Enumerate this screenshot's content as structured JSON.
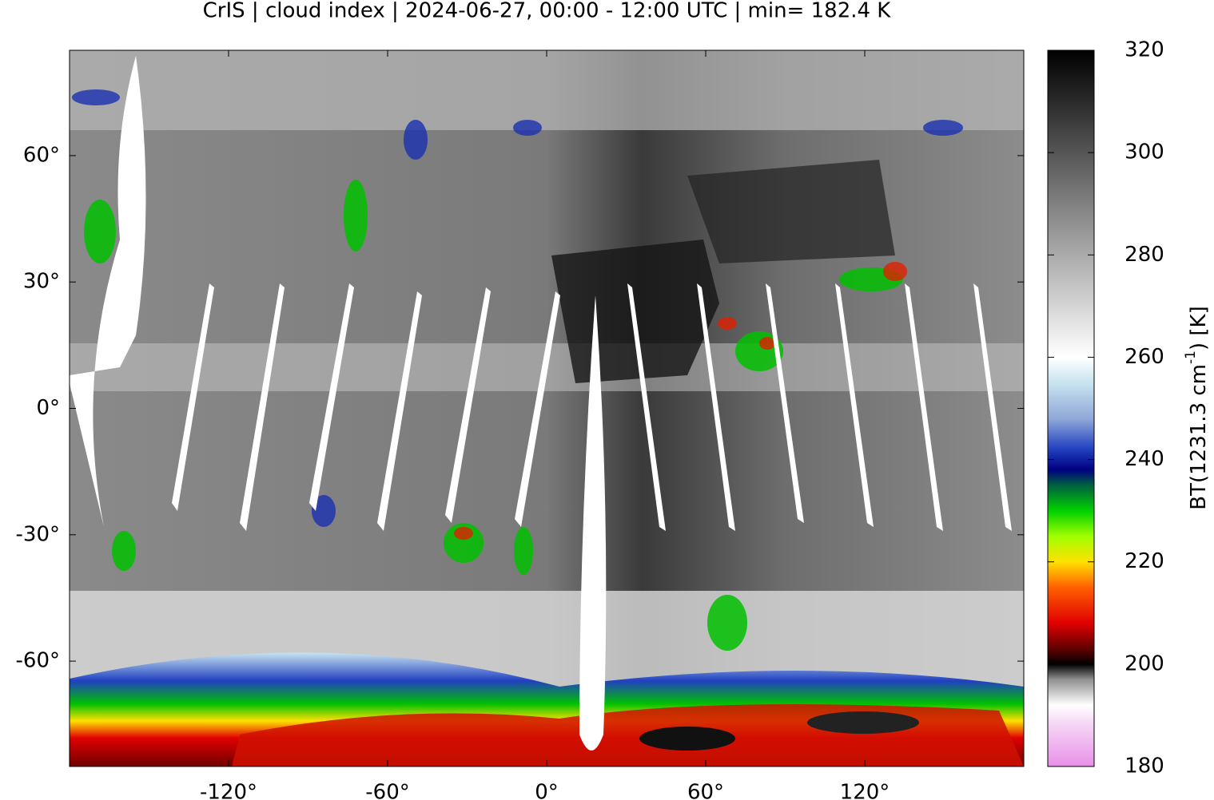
{
  "chart_data": {
    "type": "map",
    "title": "CrIS | cloud index | 2024-06-27, 00:00 - 12:00 UTC | min= 182.4 K",
    "xlim": [
      -180,
      180
    ],
    "ylim": [
      -85,
      85
    ],
    "xticks": [
      {
        "value": -120,
        "label": "-120°"
      },
      {
        "value": -60,
        "label": "-60°"
      },
      {
        "value": 0,
        "label": "0°"
      },
      {
        "value": 60,
        "label": "60°"
      },
      {
        "value": 120,
        "label": "120°"
      }
    ],
    "yticks": [
      {
        "value": 60,
        "label": "60°"
      },
      {
        "value": 30,
        "label": "30°"
      },
      {
        "value": 0,
        "label": "0°"
      },
      {
        "value": -30,
        "label": "-30°"
      },
      {
        "value": -60,
        "label": "-60°"
      }
    ],
    "colorbar": {
      "label": [
        "BT(1231.3 cm",
        "-1",
        ") [K]"
      ],
      "lim": [
        180,
        320
      ],
      "ticks": [
        180,
        200,
        220,
        240,
        260,
        280,
        300,
        320
      ],
      "colormap": [
        {
          "value": 180,
          "color": "#e890e8"
        },
        {
          "value": 188,
          "color": "#f4d4f4"
        },
        {
          "value": 192,
          "color": "#ffffff"
        },
        {
          "value": 197,
          "color": "#909090"
        },
        {
          "value": 200,
          "color": "#000000"
        },
        {
          "value": 203,
          "color": "#600000"
        },
        {
          "value": 208,
          "color": "#e00000"
        },
        {
          "value": 215,
          "color": "#ff6000"
        },
        {
          "value": 220,
          "color": "#ffe000"
        },
        {
          "value": 225,
          "color": "#a0ff00"
        },
        {
          "value": 230,
          "color": "#00d000"
        },
        {
          "value": 235,
          "color": "#006040"
        },
        {
          "value": 238,
          "color": "#000080"
        },
        {
          "value": 242,
          "color": "#2040c0"
        },
        {
          "value": 248,
          "color": "#90a8d8"
        },
        {
          "value": 255,
          "color": "#c8e4f0"
        },
        {
          "value": 260,
          "color": "#ffffff"
        },
        {
          "value": 290,
          "color": "#808080"
        },
        {
          "value": 320,
          "color": "#000000"
        }
      ]
    }
  }
}
